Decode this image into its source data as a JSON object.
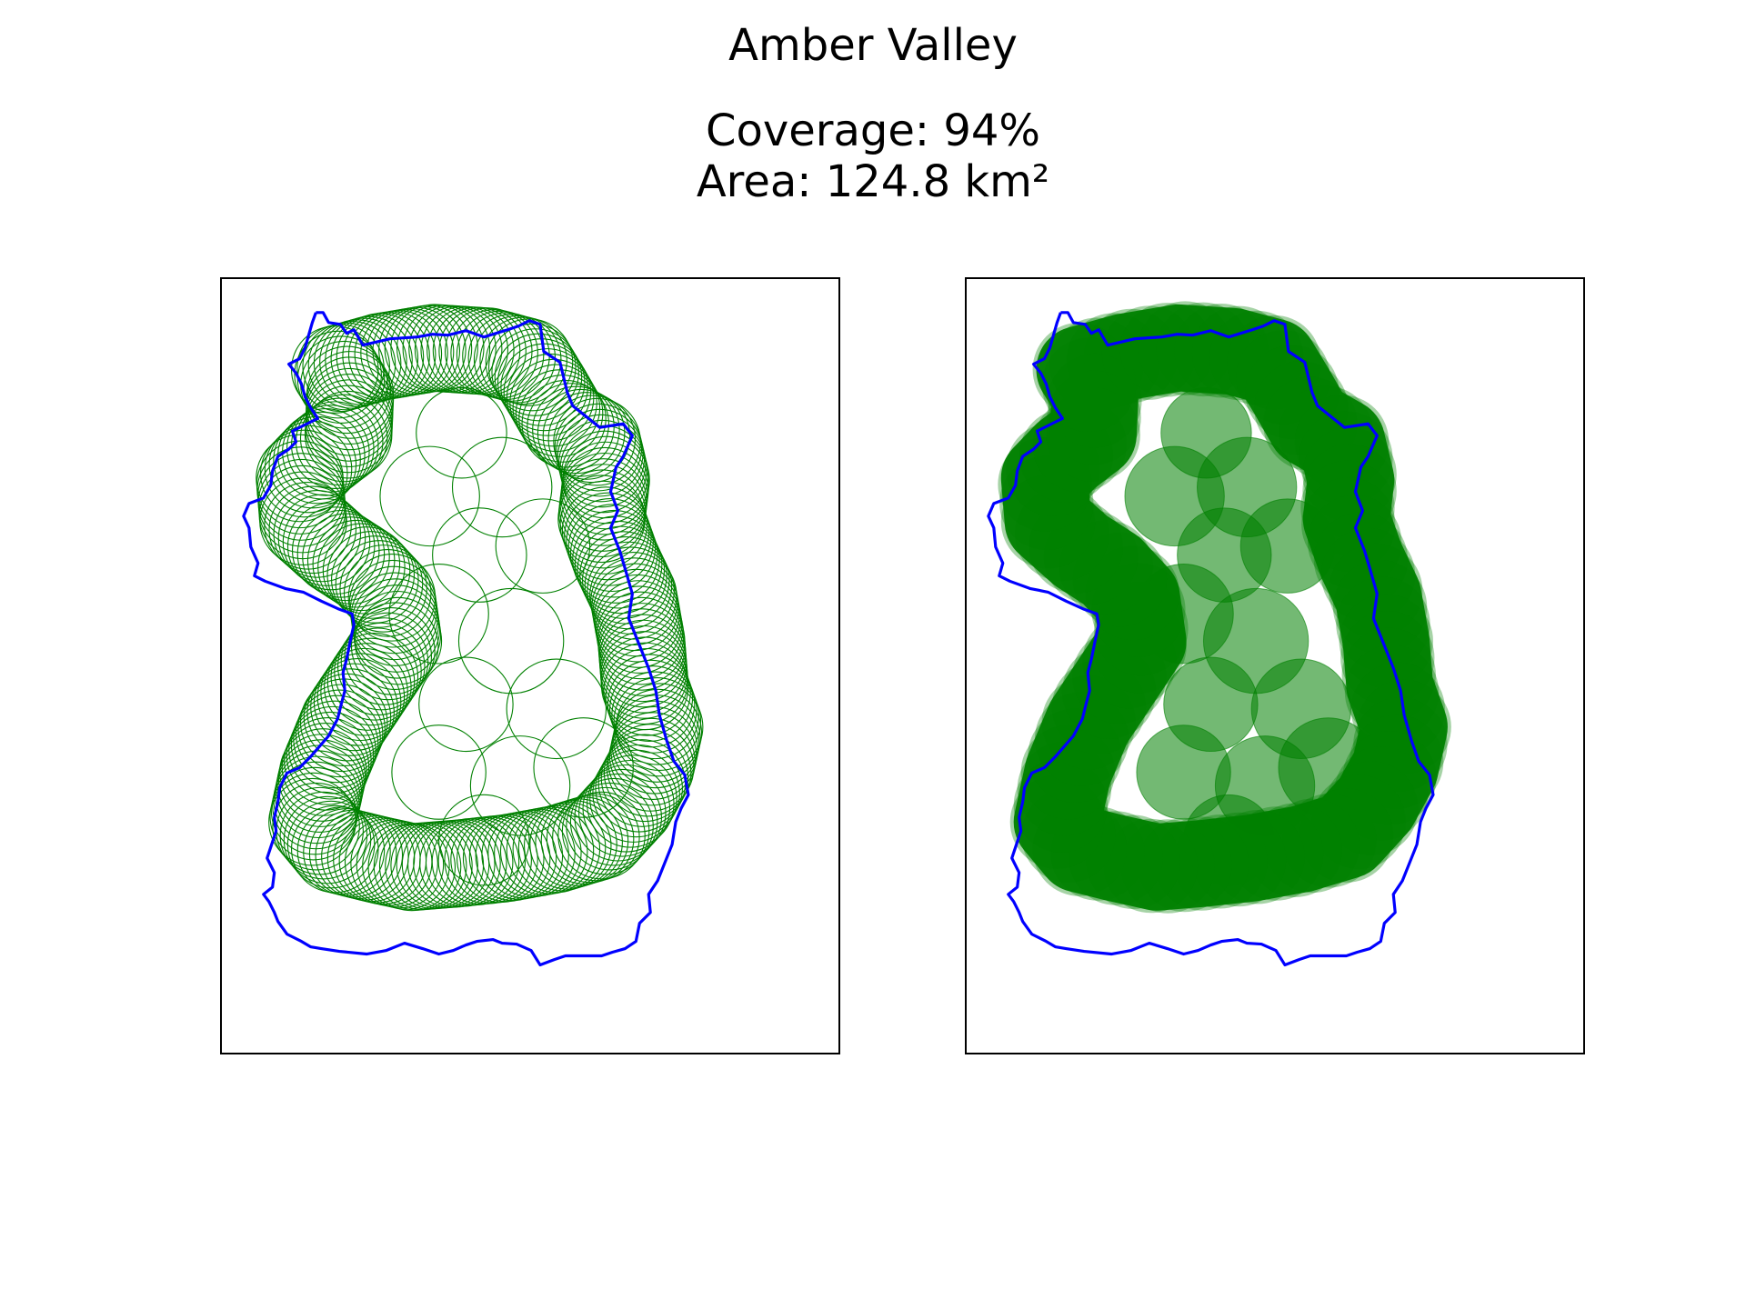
{
  "header": {
    "title": "Amber Valley",
    "coverage_text": "Coverage: 94%",
    "area_text": "Area: 124.8 km²"
  },
  "map": {
    "region_name": "Amber Valley",
    "coverage_percent": 94,
    "area_km2": 124.8,
    "panels": [
      {
        "style": "outline-circles",
        "circle_color": "#008000",
        "boundary_color": "#0000ff"
      },
      {
        "style": "filled-circles",
        "circle_color": "#008000",
        "boundary_color": "#0000ff"
      }
    ]
  },
  "colors": {
    "boundary": "#0000ff",
    "circles": "#008000",
    "frame": "#000000",
    "background": "#ffffff"
  }
}
